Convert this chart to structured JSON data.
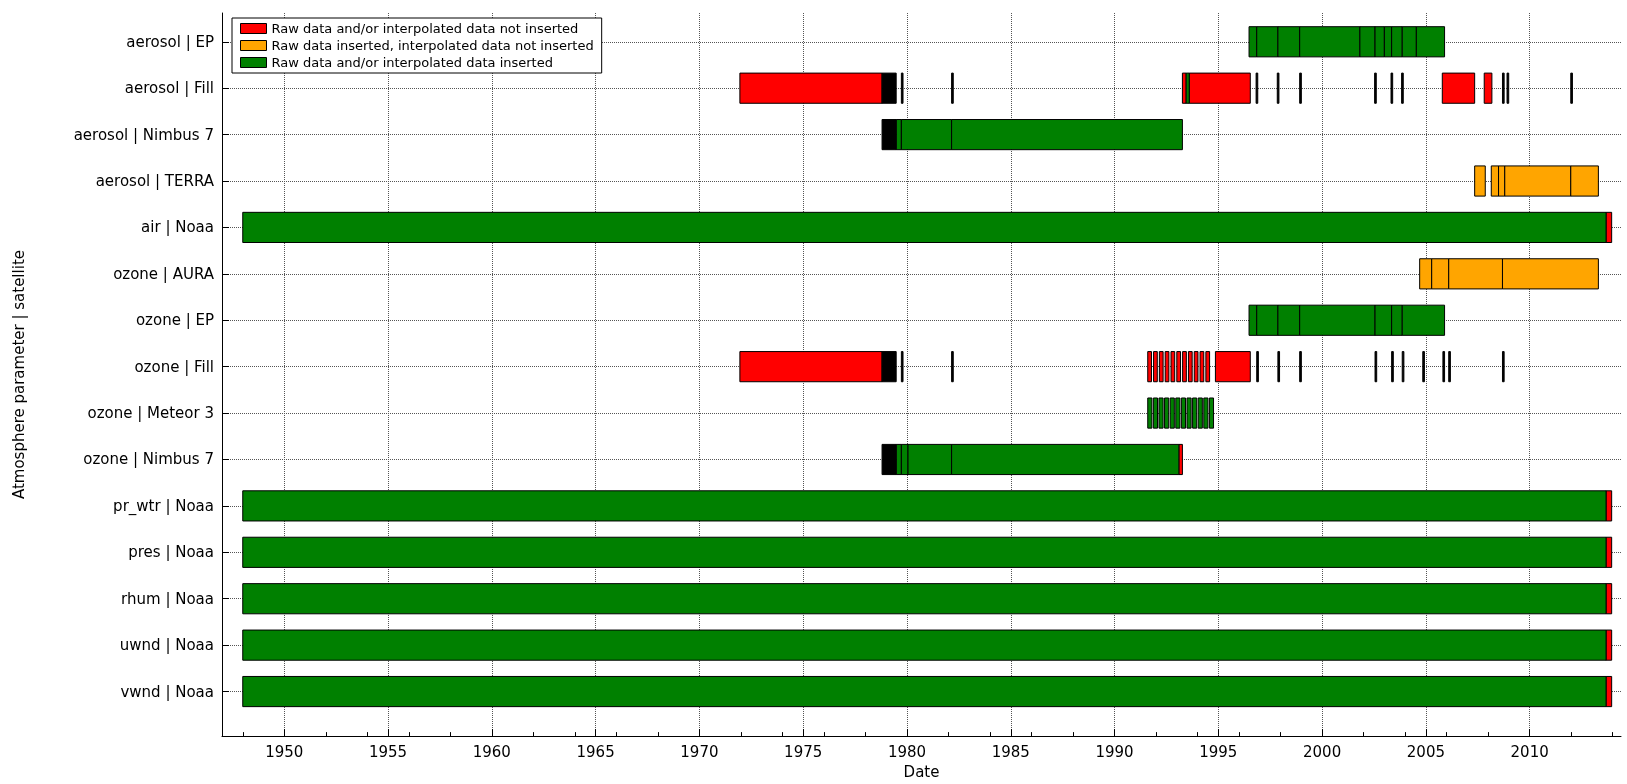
{
  "chart_data": {
    "type": "bar",
    "orientation": "horizontal",
    "xlabel": "Date",
    "ylabel": "Atmosphere parameter | satellite",
    "categories": [
      "aerosol | EP",
      "aerosol | Fill",
      "aerosol | Nimbus 7",
      "aerosol | TERRA",
      "air | Noaa",
      "ozone | AURA",
      "ozone | EP",
      "ozone | Fill",
      "ozone | Meteor 3",
      "ozone | Nimbus 7",
      "pr_wtr | Noaa",
      "pres | Noaa",
      "rhum | Noaa",
      "uwnd | Noaa",
      "vwnd | Noaa"
    ],
    "xlim": [
      1947,
      2014.4
    ],
    "xticks": [
      1950,
      1955,
      1960,
      1965,
      1970,
      1975,
      1980,
      1985,
      1990,
      1995,
      2000,
      2005,
      2010
    ],
    "grid": true,
    "legend": "top left",
    "series": [
      {
        "name": "Raw data and/or interpolated data not inserted",
        "color": "#ff0000",
        "base": [
          null,
          1971.95,
          null,
          null,
          2013.68,
          null,
          null,
          1971.95,
          null,
          1993.1,
          2013.68,
          2013.68,
          2013.68,
          2013.68,
          2013.68
        ],
        "values": [
          null,
          6.85,
          null,
          null,
          0.27,
          null,
          null,
          6.85,
          null,
          0.17,
          0.27,
          0.27,
          0.27,
          0.27,
          0.27
        ]
      },
      {
        "color": "#ff0000",
        "base": [
          null,
          1993.27,
          null,
          null,
          null,
          null,
          null,
          1991.6,
          null,
          null,
          null,
          null,
          null,
          null,
          null
        ],
        "values": [
          null,
          0.18,
          null,
          null,
          null,
          null,
          null,
          0.18,
          null,
          null,
          null,
          null,
          null,
          null,
          null
        ]
      },
      {
        "color": "#ff0000",
        "base": [
          null,
          1993.6,
          null,
          null,
          null,
          null,
          null,
          1991.88,
          null,
          null,
          null,
          null,
          null,
          null,
          null
        ],
        "values": [
          null,
          2.94,
          null,
          null,
          null,
          null,
          null,
          0.18,
          null,
          null,
          null,
          null,
          null,
          null,
          null
        ]
      },
      {
        "color": "#ff0000",
        "base": [
          null,
          2005.79,
          null,
          null,
          null,
          null,
          null,
          1992.16,
          null,
          null,
          null,
          null,
          null,
          null,
          null
        ],
        "values": [
          null,
          1.56,
          null,
          null,
          null,
          null,
          null,
          0.18,
          null,
          null,
          null,
          null,
          null,
          null,
          null
        ]
      },
      {
        "color": "#ff0000",
        "base": [
          null,
          2007.81,
          null,
          null,
          null,
          null,
          null,
          1992.44,
          null,
          null,
          null,
          null,
          null,
          null,
          null
        ],
        "values": [
          null,
          0.37,
          null,
          null,
          null,
          null,
          null,
          0.18,
          null,
          null,
          null,
          null,
          null,
          null,
          null
        ]
      },
      {
        "color": "#ff0000",
        "base": [
          null,
          null,
          null,
          null,
          null,
          null,
          null,
          1992.72,
          null,
          null,
          null,
          null,
          null,
          null,
          null
        ],
        "values": [
          null,
          null,
          null,
          null,
          null,
          null,
          null,
          0.18,
          null,
          null,
          null,
          null,
          null,
          null,
          null
        ]
      },
      {
        "color": "#ff0000",
        "base": [
          null,
          null,
          null,
          null,
          null,
          null,
          null,
          1993.0,
          null,
          null,
          null,
          null,
          null,
          null,
          null
        ],
        "values": [
          null,
          null,
          null,
          null,
          null,
          null,
          null,
          0.18,
          null,
          null,
          null,
          null,
          null,
          null,
          null
        ]
      },
      {
        "color": "#ff0000",
        "base": [
          null,
          null,
          null,
          null,
          null,
          null,
          null,
          1993.28,
          null,
          null,
          null,
          null,
          null,
          null,
          null
        ],
        "values": [
          null,
          null,
          null,
          null,
          null,
          null,
          null,
          0.18,
          null,
          null,
          null,
          null,
          null,
          null,
          null
        ]
      },
      {
        "color": "#ff0000",
        "base": [
          null,
          null,
          null,
          null,
          null,
          null,
          null,
          1993.56,
          null,
          null,
          null,
          null,
          null,
          null,
          null
        ],
        "values": [
          null,
          null,
          null,
          null,
          null,
          null,
          null,
          0.18,
          null,
          null,
          null,
          null,
          null,
          null,
          null
        ]
      },
      {
        "color": "#ff0000",
        "base": [
          null,
          null,
          null,
          null,
          null,
          null,
          null,
          1993.84,
          null,
          null,
          null,
          null,
          null,
          null,
          null
        ],
        "values": [
          null,
          null,
          null,
          null,
          null,
          null,
          null,
          0.18,
          null,
          null,
          null,
          null,
          null,
          null,
          null
        ]
      },
      {
        "color": "#ff0000",
        "base": [
          null,
          null,
          null,
          null,
          null,
          null,
          null,
          1994.12,
          null,
          null,
          null,
          null,
          null,
          null,
          null
        ],
        "values": [
          null,
          null,
          null,
          null,
          null,
          null,
          null,
          0.18,
          null,
          null,
          null,
          null,
          null,
          null,
          null
        ]
      },
      {
        "color": "#ff0000",
        "base": [
          null,
          null,
          null,
          null,
          null,
          null,
          null,
          1994.4,
          null,
          null,
          null,
          null,
          null,
          null,
          null
        ],
        "values": [
          null,
          null,
          null,
          null,
          null,
          null,
          null,
          0.18,
          null,
          null,
          null,
          null,
          null,
          null,
          null
        ]
      },
      {
        "color": "#ff0000",
        "base": [
          null,
          null,
          null,
          null,
          null,
          null,
          null,
          1994.86,
          null,
          null,
          null,
          null,
          null,
          null,
          null
        ],
        "values": [
          null,
          null,
          null,
          null,
          null,
          null,
          null,
          1.68,
          null,
          null,
          null,
          null,
          null,
          null,
          null
        ]
      },
      {
        "name": "Raw data inserted, interpolated data not inserted",
        "color": "#ffa500",
        "base": [
          null,
          null,
          null,
          2007.35,
          null,
          2004.7,
          null,
          null,
          null,
          null,
          null,
          null,
          null,
          null,
          null
        ],
        "values": [
          null,
          null,
          null,
          0.51,
          null,
          0.58,
          null,
          null,
          null,
          null,
          null,
          null,
          null,
          null,
          null
        ]
      },
      {
        "color": "#ffa500",
        "base": [
          null,
          null,
          null,
          2008.15,
          null,
          2005.28,
          null,
          null,
          null,
          null,
          null,
          null,
          null,
          null,
          null
        ],
        "values": [
          null,
          null,
          null,
          0.35,
          null,
          0.82,
          null,
          null,
          null,
          null,
          null,
          null,
          null,
          null,
          null
        ]
      },
      {
        "color": "#ffa500",
        "base": [
          null,
          null,
          null,
          2008.5,
          null,
          2006.1,
          null,
          null,
          null,
          null,
          null,
          null,
          null,
          null,
          null
        ],
        "values": [
          null,
          null,
          null,
          0.3,
          null,
          2.59,
          null,
          null,
          null,
          null,
          null,
          null,
          null,
          null,
          null
        ]
      },
      {
        "color": "#ffa500",
        "base": [
          null,
          null,
          null,
          2008.8,
          null,
          2008.69,
          null,
          null,
          null,
          null,
          null,
          null,
          null,
          null,
          null
        ],
        "values": [
          null,
          null,
          null,
          3.18,
          null,
          4.62,
          null,
          null,
          null,
          null,
          null,
          null,
          null,
          null,
          null
        ]
      },
      {
        "color": "#ffa500",
        "base": [
          null,
          null,
          null,
          2011.98,
          null,
          null,
          null,
          null,
          null,
          null,
          null,
          null,
          null,
          null,
          null
        ],
        "values": [
          null,
          null,
          null,
          1.33,
          null,
          null,
          null,
          null,
          null,
          null,
          null,
          null,
          null,
          null,
          null
        ]
      },
      {
        "name": "Raw data and/or interpolated data inserted",
        "color": "#008000",
        "base": [
          1996.48,
          1993.45,
          1979.48,
          null,
          1948,
          null,
          1996.48,
          null,
          1991.6,
          1979.48,
          1948,
          1948,
          1948,
          1948,
          1948
        ],
        "values": [
          0.37,
          0.15,
          0.25,
          null,
          65.68,
          null,
          0.37,
          null,
          0.2,
          0.25,
          65.68,
          65.68,
          65.68,
          65.68,
          65.68
        ]
      },
      {
        "color": "#008000",
        "base": [
          1996.85,
          null,
          1979.73,
          null,
          null,
          null,
          1996.85,
          null,
          1991.87,
          1979.73,
          null,
          null,
          null,
          null,
          null
        ],
        "values": [
          1.02,
          null,
          2.42,
          null,
          null,
          null,
          1.02,
          null,
          0.2,
          0.32,
          null,
          null,
          null,
          null,
          null
        ]
      },
      {
        "color": "#008000",
        "base": [
          1997.87,
          null,
          1982.15,
          null,
          null,
          null,
          1997.87,
          null,
          1992.14,
          1980.05,
          null,
          null,
          null,
          null,
          null
        ],
        "values": [
          1.05,
          null,
          11.12,
          null,
          null,
          null,
          1.05,
          null,
          0.2,
          2.1,
          null,
          null,
          null,
          null,
          null
        ]
      },
      {
        "color": "#008000",
        "base": [
          1998.92,
          null,
          null,
          null,
          null,
          null,
          1998.92,
          null,
          1992.41,
          1982.15,
          null,
          null,
          null,
          null,
          null
        ],
        "values": [
          2.9,
          null,
          null,
          null,
          null,
          null,
          3.63,
          null,
          0.2,
          10.95,
          null,
          null,
          null,
          null,
          null
        ]
      },
      {
        "color": "#008000",
        "base": [
          2001.82,
          null,
          null,
          null,
          null,
          null,
          2002.55,
          null,
          1992.68,
          null,
          null,
          null,
          null,
          null,
          null
        ],
        "values": [
          0.73,
          null,
          null,
          null,
          null,
          null,
          0.8,
          null,
          0.2,
          null,
          null,
          null,
          null,
          null,
          null
        ]
      },
      {
        "color": "#008000",
        "base": [
          2002.55,
          null,
          null,
          null,
          null,
          null,
          2003.35,
          null,
          1992.95,
          null,
          null,
          null,
          null,
          null,
          null
        ],
        "values": [
          0.45,
          null,
          null,
          null,
          null,
          null,
          0.51,
          null,
          0.2,
          null,
          null,
          null,
          null,
          null,
          null
        ]
      },
      {
        "color": "#008000",
        "base": [
          2003.0,
          null,
          null,
          null,
          null,
          null,
          2003.86,
          null,
          1993.22,
          null,
          null,
          null,
          null,
          null,
          null
        ],
        "values": [
          0.35,
          null,
          null,
          null,
          null,
          null,
          2.04,
          null,
          0.2,
          null,
          null,
          null,
          null,
          null,
          null
        ]
      },
      {
        "color": "#008000",
        "base": [
          2003.35,
          null,
          null,
          null,
          null,
          null,
          null,
          null,
          1993.49,
          null,
          null,
          null,
          null,
          null,
          null
        ],
        "values": [
          0.51,
          null,
          null,
          null,
          null,
          null,
          null,
          null,
          0.2,
          null,
          null,
          null,
          null,
          null,
          null
        ]
      },
      {
        "color": "#008000",
        "base": [
          2003.86,
          null,
          null,
          null,
          null,
          null,
          null,
          null,
          1993.76,
          null,
          null,
          null,
          null,
          null,
          null
        ],
        "values": [
          0.68,
          null,
          null,
          null,
          null,
          null,
          null,
          null,
          0.2,
          null,
          null,
          null,
          null,
          null,
          null
        ]
      },
      {
        "color": "#008000",
        "base": [
          2004.54,
          null,
          null,
          null,
          null,
          null,
          null,
          null,
          1994.03,
          null,
          null,
          null,
          null,
          null,
          null
        ],
        "values": [
          1.36,
          null,
          null,
          null,
          null,
          null,
          null,
          null,
          0.2,
          null,
          null,
          null,
          null,
          null,
          null
        ]
      },
      {
        "color": "#008000",
        "base": [
          null,
          null,
          null,
          null,
          null,
          null,
          null,
          null,
          1994.3,
          null,
          null,
          null,
          null,
          null,
          null
        ],
        "values": [
          null,
          null,
          null,
          null,
          null,
          null,
          null,
          null,
          0.2,
          null,
          null,
          null,
          null,
          null,
          null
        ]
      },
      {
        "color": "#008000",
        "base": [
          null,
          null,
          null,
          null,
          null,
          null,
          null,
          null,
          1994.57,
          null,
          null,
          null,
          null,
          null,
          null
        ],
        "values": [
          null,
          null,
          null,
          null,
          null,
          null,
          null,
          null,
          0.2,
          null,
          null,
          null,
          null,
          null,
          null
        ]
      },
      {
        "color": "#000000",
        "base": [
          null,
          1978.8,
          1978.8,
          null,
          null,
          null,
          null,
          1978.8,
          null,
          1978.8,
          null,
          null,
          null,
          null,
          null
        ],
        "values": [
          null,
          0.68,
          0.68,
          null,
          null,
          null,
          null,
          0.68,
          null,
          0.68,
          null,
          null,
          null,
          null,
          null
        ]
      },
      {
        "color": "#000000",
        "base": [
          null,
          1979.73,
          null,
          null,
          null,
          null,
          null,
          1979.73,
          null,
          null,
          null,
          null,
          null,
          null,
          null
        ],
        "values": [
          null,
          0.08,
          null,
          null,
          null,
          null,
          null,
          0.08,
          null,
          null,
          null,
          null,
          null,
          null,
          null
        ]
      },
      {
        "color": "#000000",
        "base": [
          null,
          1982.15,
          null,
          null,
          null,
          null,
          null,
          1982.15,
          null,
          null,
          null,
          null,
          null,
          null,
          null
        ],
        "values": [
          null,
          0.08,
          null,
          null,
          null,
          null,
          null,
          0.08,
          null,
          null,
          null,
          null,
          null,
          null,
          null
        ]
      },
      {
        "color": "#000000",
        "base": [
          null,
          1996.82,
          null,
          null,
          null,
          null,
          null,
          1996.85,
          null,
          null,
          null,
          null,
          null,
          null,
          null
        ],
        "values": [
          null,
          0.08,
          null,
          null,
          null,
          null,
          null,
          0.08,
          null,
          null,
          null,
          null,
          null,
          null,
          null
        ]
      },
      {
        "color": "#000000",
        "base": [
          null,
          1997.84,
          null,
          null,
          null,
          null,
          null,
          1997.87,
          null,
          null,
          null,
          null,
          null,
          null,
          null
        ],
        "values": [
          null,
          0.08,
          null,
          null,
          null,
          null,
          null,
          0.08,
          null,
          null,
          null,
          null,
          null,
          null,
          null
        ]
      },
      {
        "color": "#000000",
        "base": [
          null,
          1998.92,
          null,
          null,
          null,
          null,
          null,
          1998.92,
          null,
          null,
          null,
          null,
          null,
          null,
          null
        ],
        "values": [
          null,
          0.08,
          null,
          null,
          null,
          null,
          null,
          0.08,
          null,
          null,
          null,
          null,
          null,
          null,
          null
        ]
      },
      {
        "color": "#000000",
        "base": [
          null,
          2002.53,
          null,
          null,
          null,
          null,
          null,
          2002.55,
          null,
          null,
          null,
          null,
          null,
          null,
          null
        ],
        "values": [
          null,
          0.08,
          null,
          null,
          null,
          null,
          null,
          0.08,
          null,
          null,
          null,
          null,
          null,
          null,
          null
        ]
      },
      {
        "color": "#000000",
        "base": [
          null,
          2003.32,
          null,
          null,
          null,
          null,
          null,
          2003.35,
          null,
          null,
          null,
          null,
          null,
          null,
          null
        ],
        "values": [
          null,
          0.08,
          null,
          null,
          null,
          null,
          null,
          0.08,
          null,
          null,
          null,
          null,
          null,
          null,
          null
        ]
      },
      {
        "color": "#000000",
        "base": [
          null,
          2003.83,
          null,
          null,
          null,
          null,
          null,
          2003.86,
          null,
          null,
          null,
          null,
          null,
          null,
          null
        ],
        "values": [
          null,
          0.08,
          null,
          null,
          null,
          null,
          null,
          0.08,
          null,
          null,
          null,
          null,
          null,
          null,
          null
        ]
      },
      {
        "color": "#000000",
        "base": [
          null,
          2008.69,
          null,
          null,
          null,
          null,
          null,
          2004.85,
          null,
          null,
          null,
          null,
          null,
          null,
          null
        ],
        "values": [
          null,
          0.08,
          null,
          null,
          null,
          null,
          null,
          0.08,
          null,
          null,
          null,
          null,
          null,
          null,
          null
        ]
      },
      {
        "color": "#000000",
        "base": [
          null,
          2008.91,
          null,
          null,
          null,
          null,
          null,
          2005.82,
          null,
          null,
          null,
          null,
          null,
          null,
          null
        ],
        "values": [
          null,
          0.08,
          null,
          null,
          null,
          null,
          null,
          0.08,
          null,
          null,
          null,
          null,
          null,
          null,
          null
        ]
      },
      {
        "color": "#000000",
        "base": [
          null,
          2011.98,
          null,
          null,
          null,
          null,
          null,
          2006.1,
          null,
          null,
          null,
          null,
          null,
          null,
          null
        ],
        "values": [
          null,
          0.08,
          null,
          null,
          null,
          null,
          null,
          0.08,
          null,
          null,
          null,
          null,
          null,
          null,
          null
        ]
      },
      {
        "color": "#000000",
        "base": [
          null,
          null,
          null,
          null,
          null,
          null,
          null,
          2008.69,
          null,
          null,
          null,
          null,
          null,
          null,
          null
        ],
        "values": [
          null,
          null,
          null,
          null,
          null,
          null,
          null,
          0.08,
          null,
          null,
          null,
          null,
          null,
          null,
          null
        ]
      }
    ]
  }
}
